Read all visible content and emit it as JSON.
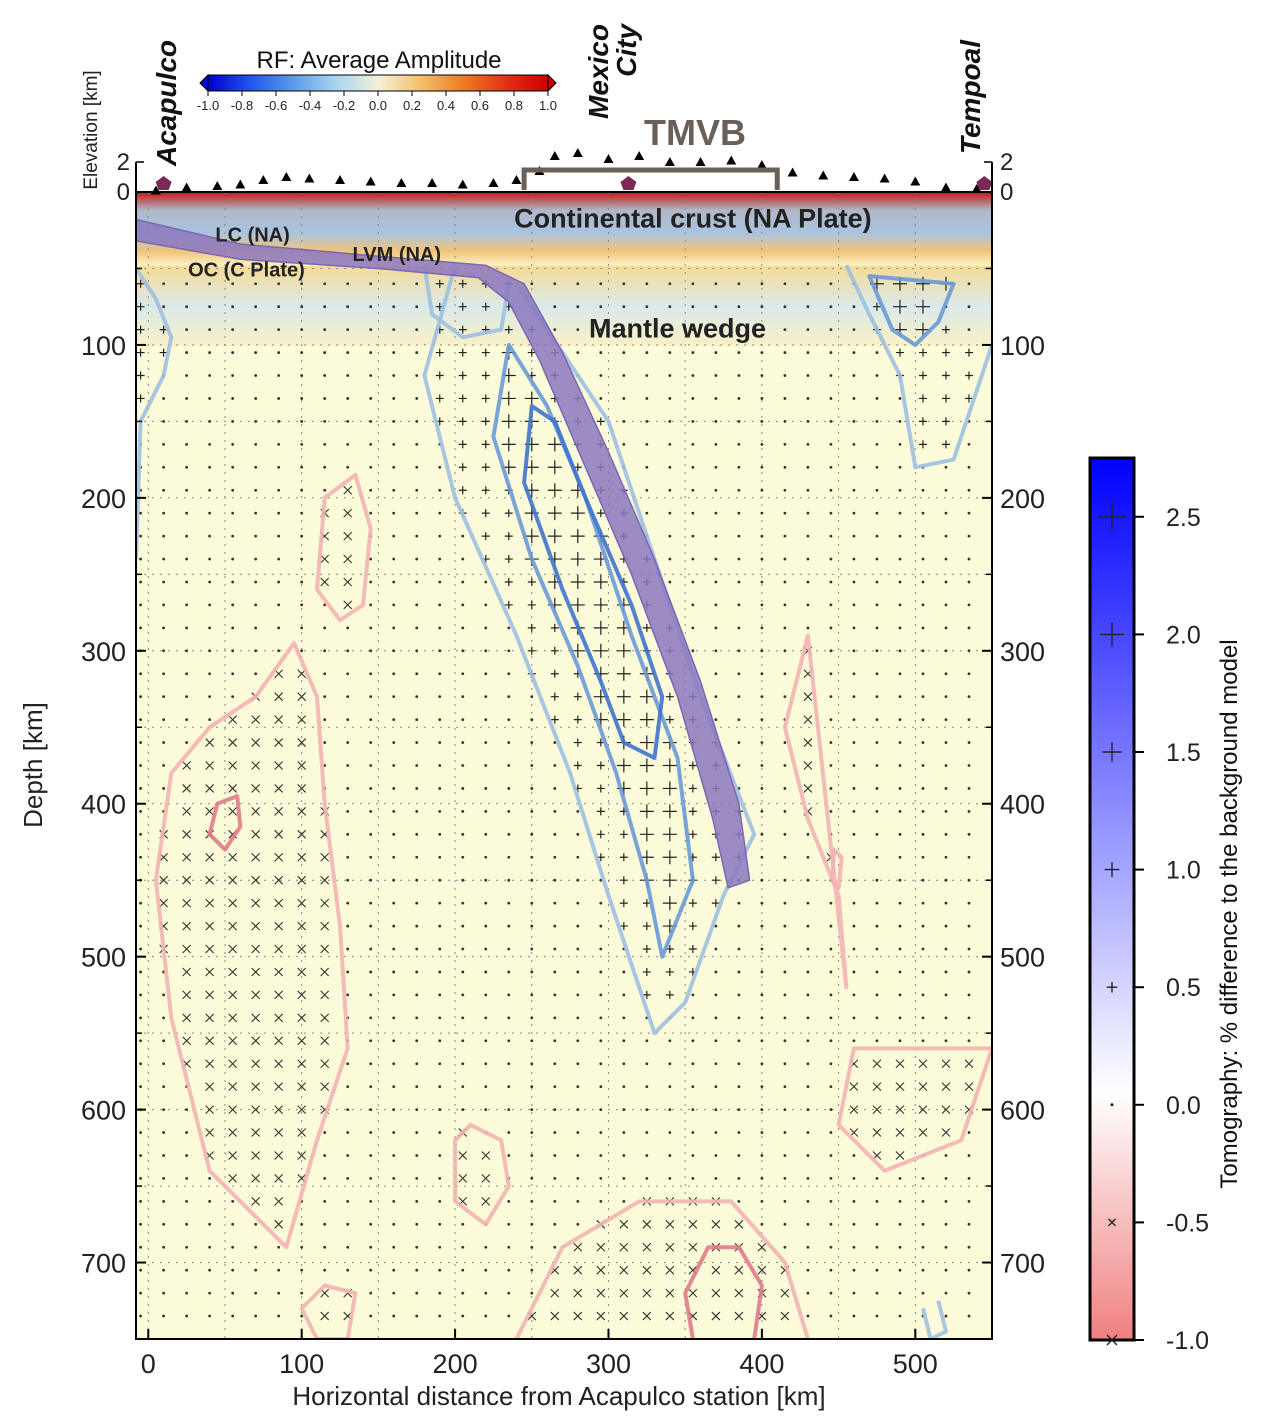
{
  "chart_data": {
    "type": "heatmap",
    "description": "",
    "xlabel": "Horizontal distance from Acapulco station [km]",
    "ylabel": "Depth [km]",
    "elevation_label": "Elevation [km]",
    "xlim": [
      -8,
      550
    ],
    "ylim": [
      0,
      750
    ],
    "x_ticks": [
      0,
      100,
      200,
      300,
      400,
      500
    ],
    "y_ticks": [
      100,
      200,
      300,
      400,
      500,
      600,
      700
    ],
    "elev_ticks": [
      2,
      0
    ],
    "elevation_range_km": [
      0,
      3
    ],
    "grid": true,
    "rf_colorbar": {
      "title": "RF: Average Amplitude",
      "range": [
        -1.0,
        1.0
      ],
      "ticks": [
        "-1.0",
        "-0.8",
        "-0.6",
        "-0.4",
        "-0.2",
        "0.0",
        "0.2",
        "0.4",
        "0.6",
        "0.8",
        "1.0"
      ],
      "colors": [
        "#0000cc",
        "#2255ee",
        "#5a9be8",
        "#a8d4f0",
        "#f4f0d8",
        "#f5c070",
        "#ee7c22",
        "#e23216",
        "#cc0000"
      ]
    },
    "tomo_colorbar": {
      "title": "Tomography: % difference to the background model",
      "range": [
        -1.0,
        2.75
      ],
      "ticks": [
        "2.5",
        "2.0",
        "1.5",
        "1.0",
        "0.5",
        "0.0",
        "-0.5",
        "-1.0"
      ],
      "tick_values": [
        2.5,
        2.0,
        1.5,
        1.0,
        0.5,
        0.0,
        -0.5,
        -1.0
      ],
      "high_color": "#0000ff",
      "zero_color": "#ffffff",
      "low_color": "#f08080"
    },
    "stations": [
      {
        "name": "Acapulco",
        "x": 10
      },
      {
        "name": "Mexico\nCity",
        "x": 313
      },
      {
        "name": "Tempoal",
        "x": 545
      }
    ],
    "tmvb": {
      "label": "TMVB",
      "x_range": [
        245,
        410
      ]
    },
    "annotations": [
      {
        "text": "Continental crust (NA Plate)",
        "x": 355,
        "depth": 18
      },
      {
        "text": "LC (NA)",
        "x": 68,
        "depth": 27
      },
      {
        "text": "LVM (NA)",
        "x": 162,
        "depth": 40
      },
      {
        "text": "OC (C Plate)",
        "x": 64,
        "depth": 50
      },
      {
        "text": "Mantle wedge",
        "x": 345,
        "depth": 90
      }
    ],
    "slab": {
      "label": "",
      "top": [
        [
          -8,
          18
        ],
        [
          60,
          34
        ],
        [
          150,
          42
        ],
        [
          220,
          48
        ],
        [
          245,
          60
        ],
        [
          270,
          105
        ],
        [
          300,
          170
        ],
        [
          330,
          240
        ],
        [
          360,
          320
        ],
        [
          385,
          400
        ],
        [
          392,
          450
        ]
      ],
      "bottom": [
        [
          -8,
          32
        ],
        [
          60,
          44
        ],
        [
          150,
          50
        ],
        [
          215,
          56
        ],
        [
          235,
          72
        ],
        [
          255,
          110
        ],
        [
          285,
          180
        ],
        [
          315,
          250
        ],
        [
          345,
          330
        ],
        [
          368,
          410
        ],
        [
          378,
          455
        ]
      ]
    },
    "topography": [
      [
        5,
        0.1
      ],
      [
        25,
        0.3
      ],
      [
        45,
        0.4
      ],
      [
        60,
        0.5
      ],
      [
        75,
        0.8
      ],
      [
        90,
        1.0
      ],
      [
        105,
        0.9
      ],
      [
        125,
        0.8
      ],
      [
        145,
        0.7
      ],
      [
        165,
        0.6
      ],
      [
        185,
        0.6
      ],
      [
        205,
        0.5
      ],
      [
        225,
        0.6
      ],
      [
        240,
        0.8
      ],
      [
        255,
        1.4
      ],
      [
        265,
        2.4
      ],
      [
        280,
        2.6
      ],
      [
        300,
        2.2
      ],
      [
        320,
        2.4
      ],
      [
        340,
        2.0
      ],
      [
        360,
        2.0
      ],
      [
        380,
        2.1
      ],
      [
        400,
        1.8
      ],
      [
        420,
        1.3
      ],
      [
        440,
        1.1
      ],
      [
        460,
        1.0
      ],
      [
        480,
        0.9
      ],
      [
        500,
        0.7
      ],
      [
        520,
        0.3
      ],
      [
        540,
        0.2
      ]
    ],
    "fast_anomaly_contours": [
      {
        "level": 0.5,
        "points": [
          [
            200,
            48
          ],
          [
            180,
            120
          ],
          [
            200,
            200
          ],
          [
            240,
            290
          ],
          [
            275,
            380
          ],
          [
            300,
            460
          ],
          [
            330,
            550
          ],
          [
            350,
            530
          ],
          [
            375,
            460
          ],
          [
            395,
            420
          ],
          [
            360,
            330
          ],
          [
            330,
            240
          ],
          [
            300,
            150
          ],
          [
            260,
            90
          ],
          [
            240,
            60
          ]
        ]
      },
      {
        "level": 1.0,
        "points": [
          [
            235,
            100
          ],
          [
            225,
            160
          ],
          [
            250,
            240
          ],
          [
            280,
            310
          ],
          [
            305,
            380
          ],
          [
            325,
            450
          ],
          [
            335,
            500
          ],
          [
            355,
            450
          ],
          [
            345,
            370
          ],
          [
            315,
            290
          ],
          [
            285,
            200
          ],
          [
            260,
            140
          ]
        ]
      },
      {
        "level": 1.5,
        "points": [
          [
            250,
            140
          ],
          [
            245,
            190
          ],
          [
            270,
            260
          ],
          [
            295,
            320
          ],
          [
            310,
            360
          ],
          [
            330,
            370
          ],
          [
            335,
            330
          ],
          [
            315,
            270
          ],
          [
            285,
            200
          ],
          [
            265,
            150
          ]
        ]
      },
      {
        "level": 0.5,
        "points": [
          [
            180,
            48
          ],
          [
            185,
            80
          ],
          [
            205,
            95
          ],
          [
            230,
            90
          ],
          [
            235,
            60
          ]
        ]
      },
      {
        "level": 0.5,
        "points": [
          [
            -8,
            50
          ],
          [
            5,
            70
          ],
          [
            15,
            95
          ],
          [
            10,
            120
          ],
          [
            -5,
            150
          ],
          [
            -8,
            240
          ]
        ]
      },
      {
        "level": 0.5,
        "points": [
          [
            455,
            48
          ],
          [
            470,
            80
          ],
          [
            490,
            120
          ],
          [
            500,
            180
          ],
          [
            525,
            175
          ],
          [
            540,
            130
          ],
          [
            550,
            100
          ]
        ]
      },
      {
        "level": 1.0,
        "points": [
          [
            470,
            55
          ],
          [
            485,
            90
          ],
          [
            500,
            100
          ],
          [
            515,
            85
          ],
          [
            525,
            60
          ]
        ]
      },
      {
        "level": 0.5,
        "points": [
          [
            505,
            730
          ],
          [
            510,
            750
          ],
          [
            520,
            745
          ],
          [
            515,
            725
          ]
        ]
      }
    ],
    "slow_anomaly_contours": [
      {
        "level": -0.5,
        "points": [
          [
            115,
            200
          ],
          [
            110,
            260
          ],
          [
            125,
            280
          ],
          [
            140,
            270
          ],
          [
            145,
            220
          ],
          [
            135,
            185
          ]
        ]
      },
      {
        "level": -0.5,
        "points": [
          [
            15,
            380
          ],
          [
            5,
            450
          ],
          [
            15,
            540
          ],
          [
            40,
            640
          ],
          [
            90,
            690
          ],
          [
            110,
            620
          ],
          [
            130,
            560
          ],
          [
            125,
            480
          ],
          [
            115,
            400
          ],
          [
            110,
            330
          ],
          [
            95,
            295
          ],
          [
            70,
            330
          ],
          [
            40,
            350
          ]
        ]
      },
      {
        "level": -1.0,
        "points": [
          [
            45,
            400
          ],
          [
            40,
            420
          ],
          [
            50,
            430
          ],
          [
            60,
            415
          ],
          [
            58,
            395
          ]
        ]
      },
      {
        "level": -0.5,
        "points": [
          [
            200,
            620
          ],
          [
            200,
            660
          ],
          [
            220,
            675
          ],
          [
            235,
            650
          ],
          [
            230,
            620
          ],
          [
            210,
            610
          ]
        ]
      },
      {
        "level": -0.5,
        "points": [
          [
            240,
            750
          ],
          [
            270,
            690
          ],
          [
            320,
            660
          ],
          [
            380,
            660
          ],
          [
            415,
            700
          ],
          [
            430,
            750
          ]
        ]
      },
      {
        "level": -1.0,
        "points": [
          [
            355,
            750
          ],
          [
            350,
            720
          ],
          [
            365,
            690
          ],
          [
            385,
            690
          ],
          [
            400,
            715
          ],
          [
            395,
            750
          ]
        ]
      },
      {
        "level": -0.5,
        "points": [
          [
            100,
            730
          ],
          [
            110,
            750
          ],
          [
            130,
            750
          ],
          [
            135,
            720
          ],
          [
            115,
            715
          ]
        ]
      },
      {
        "level": -0.5,
        "points": [
          [
            460,
            560
          ],
          [
            450,
            610
          ],
          [
            480,
            640
          ],
          [
            530,
            620
          ],
          [
            550,
            560
          ]
        ]
      },
      {
        "level": -0.5,
        "points": [
          [
            430,
            290
          ],
          [
            415,
            350
          ],
          [
            430,
            410
          ],
          [
            450,
            460
          ],
          [
            455,
            520
          ]
        ]
      },
      {
        "level": -0.5,
        "points": [
          [
            447,
            430
          ],
          [
            446,
            450
          ],
          [
            450,
            455
          ],
          [
            452,
            435
          ]
        ]
      }
    ],
    "symbol_grid": {
      "x_step": 15,
      "depth_step": 15,
      "x_range": [
        -5,
        545
      ],
      "depth_range": [
        60,
        745
      ]
    }
  }
}
